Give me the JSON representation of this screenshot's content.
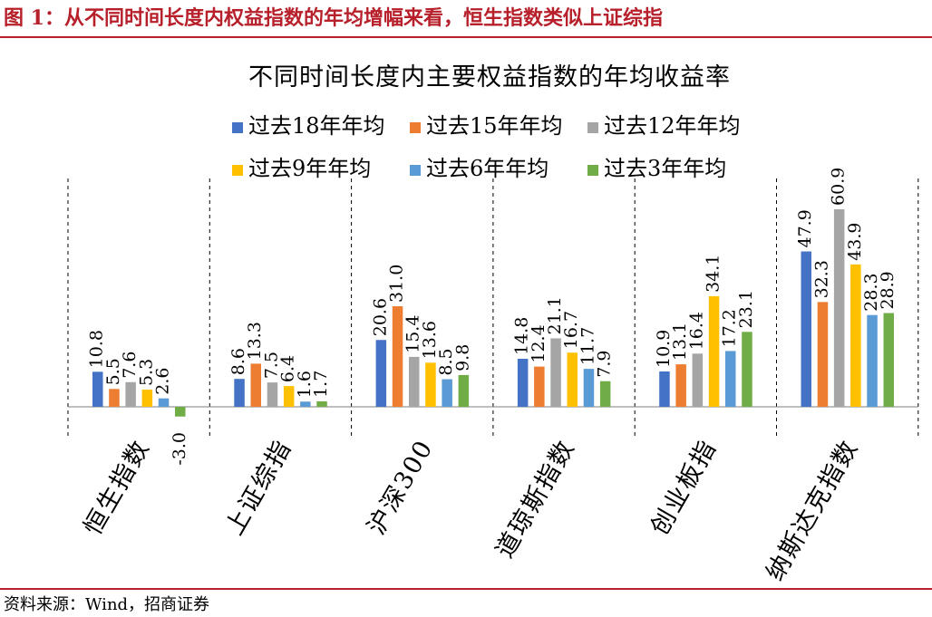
{
  "figure": {
    "label": "图 1：从不同时间长度内权益指数的年均增幅来看，恒生指数类似上证综指",
    "source": "资料来源：Wind，招商证券"
  },
  "chart_data": {
    "type": "bar",
    "title": "不同时间长度内主要权益指数的年均收益率",
    "categories": [
      "恒生指数",
      "上证综指",
      "沪深300",
      "道琼斯指数",
      "创业板指",
      "纳斯达克指数"
    ],
    "series": [
      {
        "name": "过去18年年均",
        "color": "#4472c4",
        "values": [
          10.8,
          8.6,
          20.6,
          14.8,
          10.9,
          47.9
        ]
      },
      {
        "name": "过去15年年均",
        "color": "#ed7d31",
        "values": [
          5.5,
          13.3,
          31.0,
          12.4,
          13.1,
          32.3
        ]
      },
      {
        "name": "过去12年年均",
        "color": "#a5a5a5",
        "values": [
          7.6,
          7.5,
          15.4,
          21.1,
          16.4,
          60.9
        ]
      },
      {
        "name": "过去9年年均",
        "color": "#ffc000",
        "values": [
          5.3,
          6.4,
          13.6,
          16.7,
          34.1,
          43.9
        ]
      },
      {
        "name": "过去6年年均",
        "color": "#5b9bd5",
        "values": [
          2.6,
          1.6,
          8.5,
          11.7,
          17.2,
          28.3
        ]
      },
      {
        "name": "过去3年年均",
        "color": "#70ad47",
        "values": [
          -3.0,
          1.7,
          9.8,
          7.9,
          23.1,
          28.9
        ]
      }
    ],
    "grid": false,
    "legend": "top"
  }
}
